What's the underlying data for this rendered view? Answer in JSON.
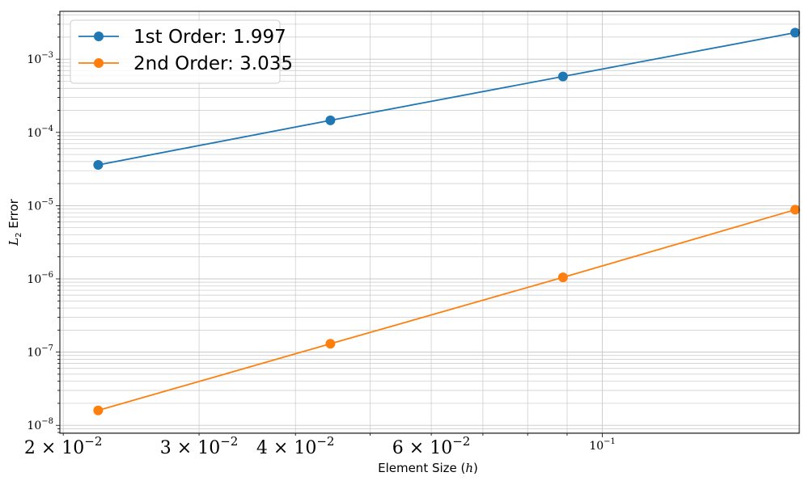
{
  "chart_data": {
    "type": "line",
    "xscale": "log",
    "yscale": "log",
    "xlim": [
      0.0198,
      0.18
    ],
    "ylim": [
      7.8e-09,
      0.0045
    ],
    "xlabel_text": "Element Size",
    "xlabel_var": "h",
    "ylabel_var": "L",
    "ylabel_sub": "2",
    "ylabel_text": "Error",
    "x": [
      0.0222,
      0.0444,
      0.0889,
      0.1778
    ],
    "series": [
      {
        "name": "1st Order: 1.997",
        "color": "#1f77b4",
        "values": [
          3.6e-05,
          0.000146,
          0.00058,
          0.0023
        ]
      },
      {
        "name": "2nd Order: 3.035",
        "color": "#ff7f0e",
        "values": [
          1.6e-08,
          1.3e-07,
          1.05e-06,
          8.8e-06
        ]
      }
    ],
    "x_tick_labels": [
      {
        "value": 0.02,
        "mantissa": "2",
        "exp": "−2",
        "large": true
      },
      {
        "value": 0.03,
        "mantissa": "3",
        "exp": "−2",
        "large": true
      },
      {
        "value": 0.04,
        "mantissa": "4",
        "exp": "−2",
        "large": true
      },
      {
        "value": 0.06,
        "mantissa": "6",
        "exp": "−2",
        "large": true
      },
      {
        "value": 0.1,
        "mantissa": "",
        "exp": "−1",
        "large": false
      }
    ],
    "y_tick_labels": [
      {
        "value": 1e-08,
        "exp": "−8"
      },
      {
        "value": 1e-07,
        "exp": "−7"
      },
      {
        "value": 1e-06,
        "exp": "−6"
      },
      {
        "value": 1e-05,
        "exp": "−5"
      },
      {
        "value": 0.0001,
        "exp": "−4"
      },
      {
        "value": 0.001,
        "exp": "−3"
      }
    ],
    "grid": true,
    "legend_position": "top-left"
  }
}
